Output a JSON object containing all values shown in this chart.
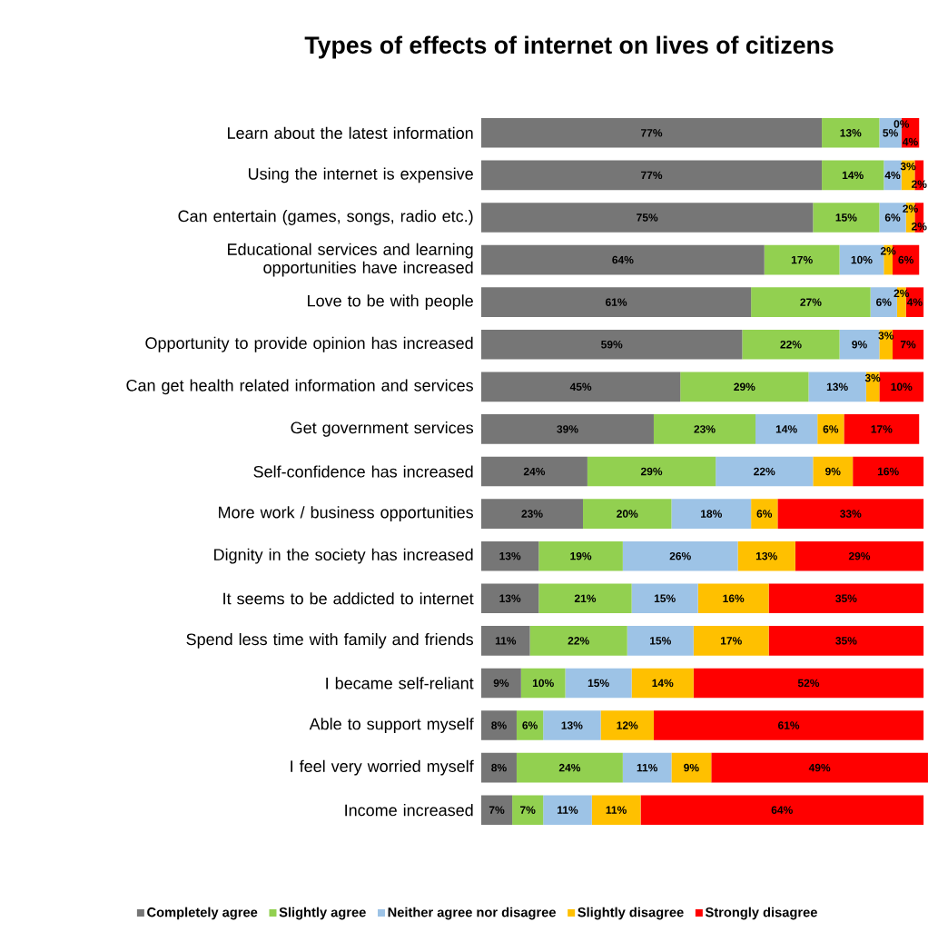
{
  "chart_data": {
    "type": "bar",
    "orientation": "horizontal",
    "stacked": true,
    "title": "Types of effects of internet on lives of citizens",
    "categories": [
      "Learn about the latest information",
      "Using the internet is expensive",
      "Can entertain (games, songs, radio etc.)",
      "Educational services and learning opportunities have increased",
      "Love to be with people",
      "Opportunity to provide opinion has increased",
      "Can get health related information and services",
      "Get government services",
      "Self-confidence has increased",
      "More work / business opportunities",
      "Dignity in the society has increased",
      "It seems to be addicted to internet",
      "Spend less time with family and friends",
      "I became self-reliant",
      "Able to support myself",
      "I feel very worried myself",
      "Income increased"
    ],
    "xlim": [
      0,
      101
    ],
    "tick_labels": "y",
    "legend": "bottom",
    "series": [
      {
        "name": "Completely agree",
        "color": "#767676",
        "values": [
          77,
          77,
          75,
          64,
          61,
          59,
          45,
          39,
          24,
          23,
          13,
          13,
          11,
          9,
          8,
          8,
          7
        ],
        "value_labels": [
          "77%",
          "77%",
          "75%",
          "64%",
          "61%",
          "59%",
          "45%",
          "39%",
          "24%",
          "23%",
          "13%",
          "13%",
          "11%",
          "9%",
          "8%",
          "8%",
          "7%"
        ]
      },
      {
        "name": "Slightly agree",
        "color": "#92d050",
        "values": [
          13,
          14,
          15,
          17,
          27,
          22,
          29,
          23,
          29,
          20,
          19,
          21,
          22,
          10,
          6,
          24,
          7
        ],
        "value_labels": [
          "13%",
          "14%",
          "15%",
          "17%",
          "27%",
          "22%",
          "29%",
          "23%",
          "29%",
          "20%",
          "19%",
          "21%",
          "22%",
          "10%",
          "6%",
          "24%",
          "7%"
        ]
      },
      {
        "name": "Neither agree nor disagree",
        "color": "#9dc3e6",
        "values": [
          5,
          4,
          6,
          10,
          6,
          9,
          13,
          14,
          22,
          18,
          26,
          15,
          15,
          15,
          13,
          11,
          11
        ],
        "value_labels": [
          "5%",
          "4%",
          "6%",
          "10%",
          "6%",
          "9%",
          "13%",
          "14%",
          "22%",
          "18%",
          "26%",
          "15%",
          "15%",
          "15%",
          "13%",
          "11%",
          "11%"
        ]
      },
      {
        "name": "Slightly disagree",
        "color": "#ffc000",
        "values": [
          0,
          3,
          2,
          2,
          2,
          3,
          3,
          6,
          9,
          6,
          13,
          16,
          17,
          14,
          12,
          9,
          11
        ],
        "value_labels": [
          "0%",
          "3%",
          "2%",
          "2%",
          "2%",
          "3%",
          "3%",
          "6%",
          "9%",
          "6%",
          "13%",
          "16%",
          "17%",
          "14%",
          "12%",
          "9%",
          "11%"
        ]
      },
      {
        "name": "Strongly disagree",
        "color": "#ff0000",
        "values": [
          4,
          2,
          2,
          6,
          4,
          7,
          10,
          17,
          16,
          33,
          29,
          35,
          35,
          52,
          61,
          49,
          64
        ],
        "value_labels": [
          "4%",
          "2%",
          "2%",
          "6%",
          "4%",
          "7%",
          "10%",
          "17%",
          "16%",
          "33%",
          "29%",
          "35%",
          "35%",
          "52%",
          "61%",
          "49%",
          "64%"
        ]
      }
    ]
  }
}
